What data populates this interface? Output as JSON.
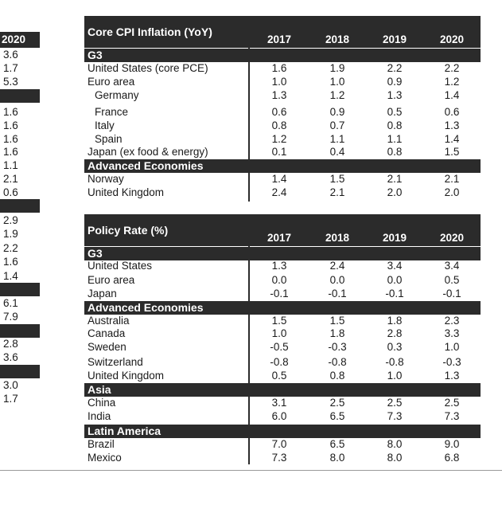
{
  "left_partial": {
    "header_year": "2020",
    "values": [
      "3.6",
      "1.7",
      "5.3",
      "1.6",
      "1.6",
      "1.6",
      "1.6",
      "1.1",
      "2.1",
      "0.6",
      "2.9",
      "1.9",
      "2.2",
      "1.6",
      "1.4",
      "6.1",
      "7.9",
      "2.8",
      "3.6",
      "3.0",
      "1.7"
    ]
  },
  "cpi_table": {
    "title": "Core CPI Inflation (YoY)",
    "years": [
      "2017",
      "2018",
      "2019",
      "2020"
    ],
    "sections": [
      {
        "name": "G3",
        "rows": [
          {
            "label": "United States (core PCE)",
            "values": [
              "1.6",
              "1.9",
              "2.2",
              "2.2"
            ]
          },
          {
            "label": "Euro area",
            "values": [
              "1.0",
              "1.0",
              "0.9",
              "1.2"
            ]
          },
          {
            "label": "Germany",
            "values": [
              "1.3",
              "1.2",
              "1.3",
              "1.4"
            ]
          },
          {
            "label": "France",
            "values": [
              "0.6",
              "0.9",
              "0.5",
              "0.6"
            ]
          },
          {
            "label": "Italy",
            "values": [
              "0.8",
              "0.7",
              "0.8",
              "1.3"
            ]
          },
          {
            "label": "Spain",
            "values": [
              "1.2",
              "1.1",
              "1.1",
              "1.4"
            ]
          },
          {
            "label": "Japan (ex food & energy)",
            "values": [
              "0.1",
              "0.4",
              "0.8",
              "1.5"
            ]
          }
        ]
      },
      {
        "name": "Advanced Economies",
        "rows": [
          {
            "label": "Norway",
            "values": [
              "1.4",
              "1.5",
              "2.1",
              "2.1"
            ]
          },
          {
            "label": "United Kingdom",
            "values": [
              "2.4",
              "2.1",
              "2.0",
              "2.0"
            ]
          }
        ]
      }
    ]
  },
  "policy_table": {
    "title": "Policy Rate (%)",
    "years": [
      "2017",
      "2018",
      "2019",
      "2020"
    ],
    "sections": [
      {
        "name": "G3",
        "rows": [
          {
            "label": "United States",
            "values": [
              "1.3",
              "2.4",
              "3.4",
              "3.4"
            ]
          },
          {
            "label": "Euro area",
            "values": [
              "0.0",
              "0.0",
              "0.0",
              "0.5"
            ]
          },
          {
            "label": "Japan",
            "values": [
              "-0.1",
              "-0.1",
              "-0.1",
              "-0.1"
            ]
          }
        ]
      },
      {
        "name": "Advanced Economies",
        "rows": [
          {
            "label": "Australia",
            "values": [
              "1.5",
              "1.5",
              "1.8",
              "2.3"
            ]
          },
          {
            "label": "Canada",
            "values": [
              "1.0",
              "1.8",
              "2.8",
              "3.3"
            ]
          },
          {
            "label": "Sweden",
            "values": [
              "-0.5",
              "-0.3",
              "0.3",
              "1.0"
            ]
          },
          {
            "label": "Switzerland",
            "values": [
              "-0.8",
              "-0.8",
              "-0.8",
              "-0.3"
            ]
          },
          {
            "label": "United Kingdom",
            "values": [
              "0.5",
              "0.8",
              "1.0",
              "1.3"
            ]
          }
        ]
      },
      {
        "name": "Asia",
        "rows": [
          {
            "label": "China",
            "values": [
              "3.1",
              "2.5",
              "2.5",
              "2.5"
            ]
          },
          {
            "label": "India",
            "values": [
              "6.0",
              "6.5",
              "7.3",
              "7.3"
            ]
          }
        ]
      },
      {
        "name": "Latin America",
        "rows": [
          {
            "label": "Brazil",
            "values": [
              "7.0",
              "6.5",
              "8.0",
              "9.0"
            ]
          },
          {
            "label": "Mexico",
            "values": [
              "7.3",
              "8.0",
              "8.0",
              "6.8"
            ]
          }
        ]
      }
    ]
  },
  "colors": {
    "header_bg": "#2b2b2b",
    "header_text": "#ffffff",
    "text": "#1a1a1a"
  }
}
